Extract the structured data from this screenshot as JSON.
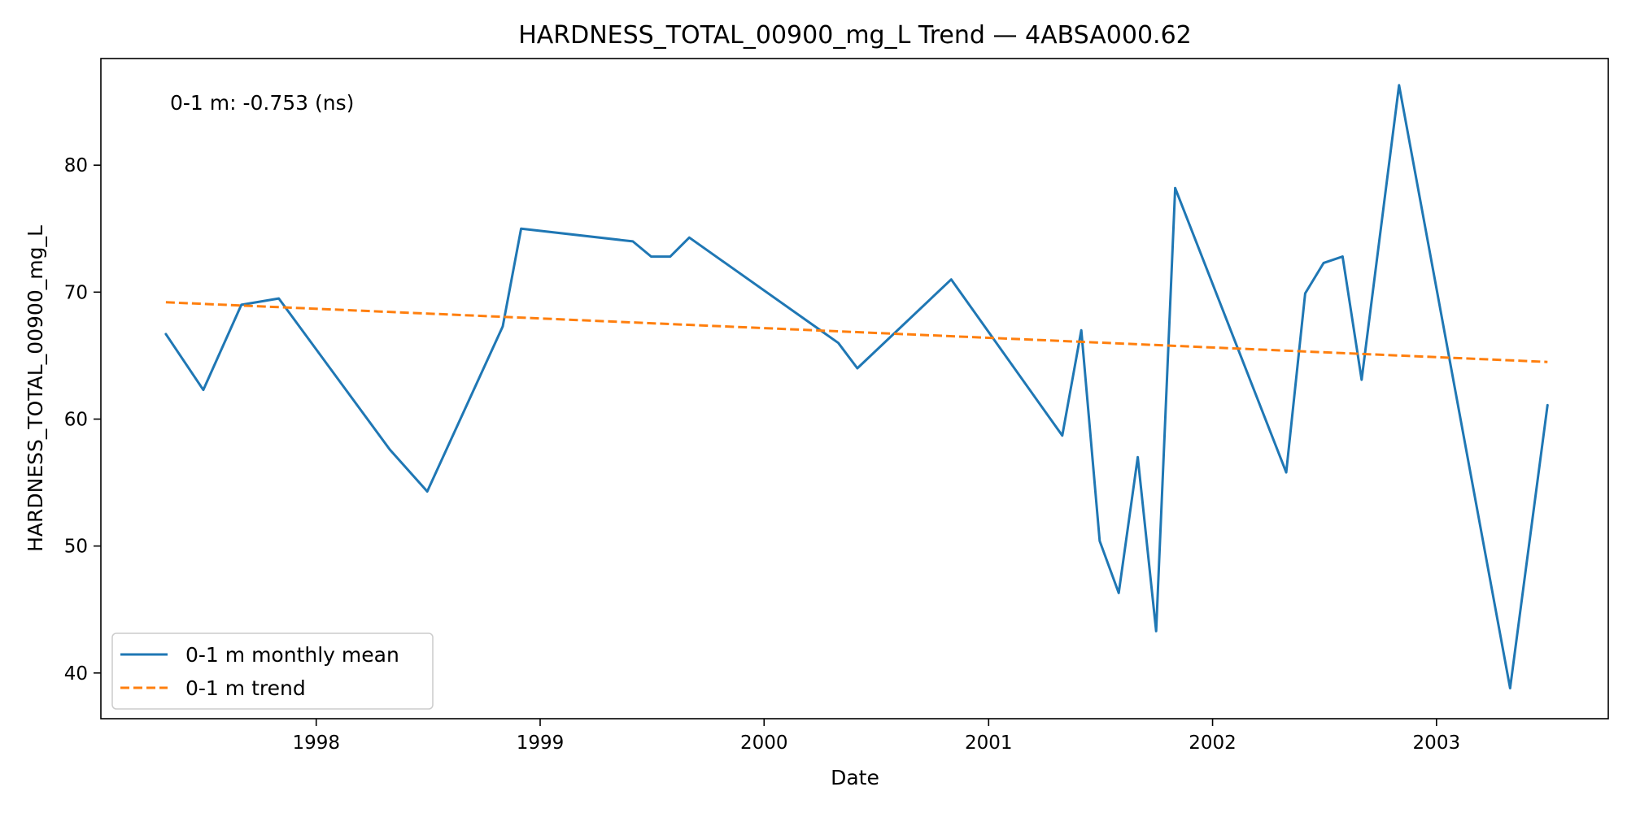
{
  "chart_data": {
    "type": "line",
    "title": "HARDNESS_TOTAL_00900_mg_L Trend — 4ABSA000.62",
    "xlabel": "Date",
    "ylabel": "HARDNESS_TOTAL_00900_mg_L",
    "annotation": "0-1 m: -0.753 (ns)",
    "xlim": [
      "1997-01-15",
      "2003-10-08"
    ],
    "ylim": [
      36.4,
      88.4
    ],
    "x_ticks": [
      "1998",
      "1999",
      "2000",
      "2001",
      "2002",
      "2003"
    ],
    "y_ticks": [
      40,
      50,
      60,
      70,
      80
    ],
    "grid": false,
    "legend_position": "lower-left",
    "series": [
      {
        "name": "0-1 m monthly mean",
        "color": "#1f77b4",
        "style": "solid",
        "points": [
          [
            "1997-05-01",
            66.7
          ],
          [
            "1997-07-01",
            62.3
          ],
          [
            "1997-09-01",
            69.0
          ],
          [
            "1997-11-01",
            69.5
          ],
          [
            "1998-05-01",
            57.6
          ],
          [
            "1998-07-01",
            54.3
          ],
          [
            "1998-11-01",
            67.3
          ],
          [
            "1998-12-01",
            75.0
          ],
          [
            "1999-06-01",
            74.0
          ],
          [
            "1999-07-01",
            72.8
          ],
          [
            "1999-08-01",
            72.8
          ],
          [
            "1999-09-01",
            74.3
          ],
          [
            "2000-05-01",
            66.0
          ],
          [
            "2000-06-01",
            64.0
          ],
          [
            "2000-11-01",
            71.0
          ],
          [
            "2001-05-01",
            58.7
          ],
          [
            "2001-06-01",
            67.0
          ],
          [
            "2001-07-01",
            50.4
          ],
          [
            "2001-08-01",
            46.3
          ],
          [
            "2001-09-01",
            57.0
          ],
          [
            "2001-10-01",
            43.3
          ],
          [
            "2001-11-01",
            78.2
          ],
          [
            "2002-05-01",
            55.8
          ],
          [
            "2002-06-01",
            69.9
          ],
          [
            "2002-07-01",
            72.3
          ],
          [
            "2002-08-01",
            72.8
          ],
          [
            "2002-09-01",
            63.1
          ],
          [
            "2002-11-01",
            86.3
          ],
          [
            "2003-05-01",
            38.8
          ],
          [
            "2003-07-01",
            61.1
          ]
        ]
      },
      {
        "name": "0-1 m trend",
        "color": "#ff7f0e",
        "style": "dashed",
        "points": [
          [
            "1997-05-01",
            69.2
          ],
          [
            "2003-07-01",
            64.5
          ]
        ]
      }
    ]
  }
}
